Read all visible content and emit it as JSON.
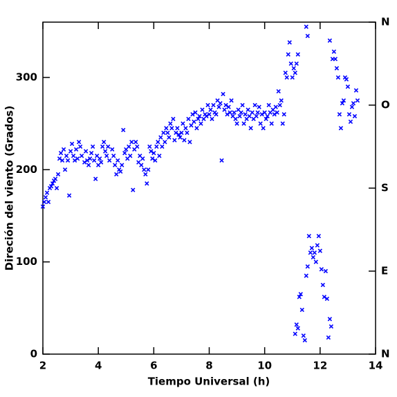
{
  "chart_data": {
    "type": "scatter",
    "x_label": "Tiempo Universal (h)",
    "y_label": "Direción del viento (Grados)",
    "xlim": [
      2,
      14
    ],
    "xticks": [
      2,
      4,
      6,
      8,
      10,
      12,
      14
    ],
    "ylim": [
      0,
      360
    ],
    "yticks": [
      0,
      100,
      200,
      300
    ],
    "y2lim": [
      0,
      360
    ],
    "y2ticks": [
      {
        "value": 0,
        "label": "N"
      },
      {
        "value": 90,
        "label": "E"
      },
      {
        "value": 180,
        "label": "S"
      },
      {
        "value": 270,
        "label": "O"
      },
      {
        "value": 360,
        "label": "N"
      }
    ],
    "y2_color": "#1a1aff",
    "color": "#0000ff",
    "x": [
      2.0,
      2.05,
      2.1,
      2.15,
      2.2,
      2.25,
      2.3,
      2.35,
      2.4,
      2.45,
      2.5,
      2.55,
      2.6,
      2.65,
      2.7,
      2.75,
      2.8,
      2.85,
      2.9,
      2.95,
      3.0,
      3.05,
      3.1,
      3.15,
      3.2,
      3.25,
      3.3,
      3.35,
      3.4,
      3.5,
      3.55,
      3.6,
      3.65,
      3.7,
      3.75,
      3.8,
      3.85,
      3.9,
      3.95,
      4.0,
      4.05,
      4.1,
      4.15,
      4.2,
      4.25,
      4.3,
      4.35,
      4.4,
      4.5,
      4.55,
      4.6,
      4.65,
      4.7,
      4.75,
      4.8,
      4.85,
      4.9,
      4.95,
      5.0,
      5.05,
      5.1,
      5.15,
      5.2,
      5.25,
      5.3,
      5.35,
      5.4,
      5.45,
      5.5,
      5.55,
      5.6,
      5.65,
      5.7,
      5.75,
      5.8,
      5.85,
      5.9,
      5.95,
      6.0,
      6.05,
      6.1,
      6.15,
      6.2,
      6.25,
      6.3,
      6.35,
      6.4,
      6.45,
      6.5,
      6.55,
      6.6,
      6.65,
      6.7,
      6.75,
      6.8,
      6.85,
      6.9,
      6.95,
      7.0,
      7.05,
      7.1,
      7.15,
      7.2,
      7.25,
      7.3,
      7.35,
      7.4,
      7.45,
      7.5,
      7.55,
      7.6,
      7.65,
      7.7,
      7.75,
      7.8,
      7.85,
      7.9,
      7.95,
      8.0,
      8.05,
      8.1,
      8.15,
      8.2,
      8.25,
      8.3,
      8.35,
      8.4,
      8.45,
      8.5,
      8.55,
      8.6,
      8.65,
      8.7,
      8.75,
      8.8,
      8.85,
      8.9,
      8.95,
      9.0,
      9.05,
      9.1,
      9.15,
      9.2,
      9.25,
      9.3,
      9.35,
      9.4,
      9.45,
      9.5,
      9.55,
      9.6,
      9.65,
      9.7,
      9.75,
      9.8,
      9.85,
      9.9,
      9.95,
      10.0,
      10.05,
      10.1,
      10.15,
      10.2,
      10.25,
      10.3,
      10.35,
      10.4,
      10.45,
      10.5,
      10.55,
      10.6,
      10.65,
      10.7,
      10.75,
      10.8,
      10.85,
      10.9,
      10.95,
      11.0,
      11.05,
      11.1,
      11.15,
      11.2,
      11.5,
      11.55,
      11.1,
      11.15,
      11.2,
      11.25,
      11.3,
      11.35,
      11.4,
      11.45,
      11.5,
      11.55,
      11.6,
      11.65,
      11.7,
      11.75,
      11.8,
      11.85,
      11.9,
      11.95,
      12.0,
      12.05,
      12.1,
      12.15,
      12.2,
      12.25,
      12.3,
      12.35,
      12.4,
      12.35,
      12.45,
      12.5,
      12.55,
      12.6,
      12.65,
      12.7,
      12.75,
      12.8,
      12.85,
      12.9,
      12.95,
      13.0,
      13.05,
      13.1,
      13.15,
      13.2,
      13.25,
      13.3,
      13.35
    ],
    "values": [
      160,
      165,
      170,
      175,
      165,
      180,
      182,
      185,
      188,
      190,
      180,
      195,
      212,
      218,
      210,
      222,
      200,
      215,
      210,
      172,
      220,
      228,
      215,
      210,
      222,
      212,
      230,
      225,
      215,
      208,
      220,
      210,
      205,
      212,
      218,
      225,
      210,
      190,
      215,
      205,
      212,
      208,
      225,
      230,
      220,
      215,
      225,
      210,
      222,
      215,
      205,
      195,
      210,
      200,
      198,
      205,
      243,
      218,
      222,
      212,
      225,
      215,
      230,
      178,
      222,
      230,
      225,
      208,
      215,
      205,
      212,
      200,
      195,
      185,
      200,
      225,
      220,
      212,
      218,
      210,
      225,
      230,
      215,
      235,
      225,
      240,
      230,
      245,
      240,
      235,
      250,
      245,
      255,
      232,
      240,
      245,
      238,
      235,
      240,
      250,
      232,
      245,
      240,
      255,
      230,
      248,
      260,
      252,
      262,
      245,
      255,
      258,
      250,
      265,
      255,
      260,
      258,
      270,
      260,
      265,
      255,
      270,
      262,
      260,
      275,
      268,
      272,
      210,
      282,
      265,
      270,
      260,
      268,
      262,
      275,
      258,
      262,
      255,
      250,
      265,
      258,
      262,
      270,
      250,
      260,
      255,
      265,
      258,
      245,
      262,
      255,
      270,
      258,
      262,
      268,
      250,
      260,
      245,
      262,
      255,
      258,
      270,
      262,
      250,
      265,
      260,
      268,
      262,
      285,
      270,
      275,
      250,
      260,
      305,
      300,
      325,
      338,
      315,
      300,
      310,
      305,
      315,
      325,
      355,
      345,
      22,
      32,
      28,
      62,
      65,
      48,
      20,
      15,
      85,
      95,
      128,
      110,
      115,
      105,
      110,
      100,
      118,
      128,
      112,
      92,
      75,
      62,
      90,
      60,
      18,
      38,
      30,
      340,
      320,
      328,
      320,
      310,
      300,
      260,
      245,
      272,
      275,
      300,
      298,
      290,
      260,
      252,
      268,
      272,
      258,
      286,
      275
    ]
  }
}
